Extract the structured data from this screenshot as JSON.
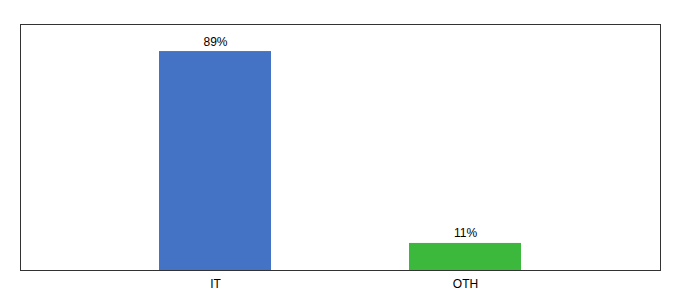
{
  "chart_data": {
    "type": "bar",
    "categories": [
      "IT",
      "OTH"
    ],
    "values": [
      89,
      11
    ],
    "value_labels": [
      "89%",
      "11%"
    ],
    "colors": [
      "#4472c4",
      "#3cb93c"
    ],
    "ylim": [
      0,
      100
    ],
    "data_labels": true,
    "tick_labels": "x"
  }
}
